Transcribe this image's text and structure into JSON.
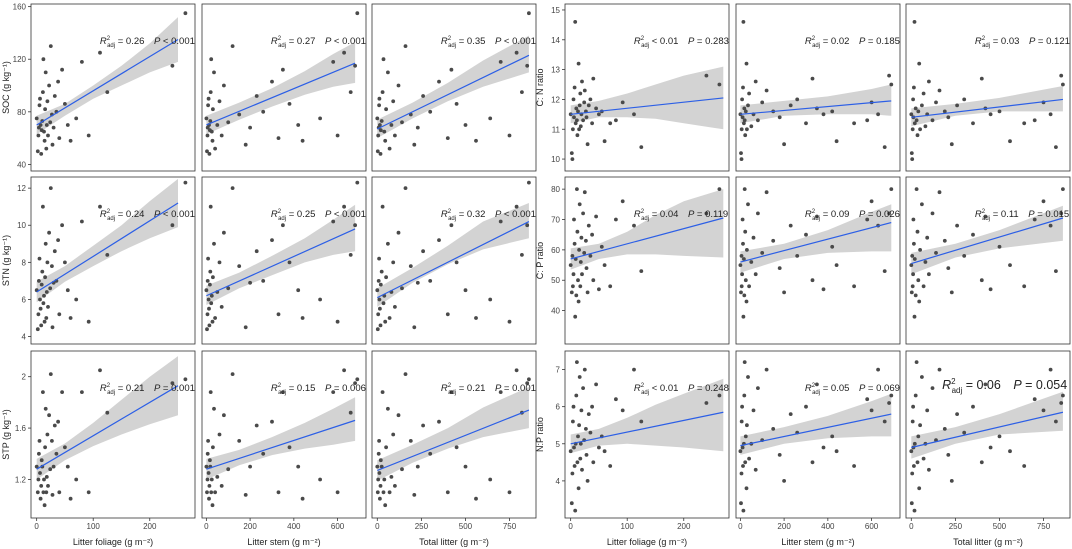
{
  "chart_data": {
    "type": "scatter",
    "description_panels": "6 columns x 3 rows of scatter plots with linear fits and grey confidence bands",
    "column_xlabels": [
      "Litter foliage (g m⁻²)",
      "Litter stem (g m⁻²)",
      "Total litter (g m⁻²)",
      "Litter foliage (g m⁻²)",
      "Litter stem (g m⁻²)",
      "Total litter (g m⁻²)"
    ],
    "x_axes": [
      {
        "range": [
          -10,
          280
        ],
        "ticks": [
          0,
          100,
          200
        ]
      },
      {
        "range": [
          -20,
          730
        ],
        "ticks": [
          0,
          200,
          400,
          600
        ]
      },
      {
        "range": [
          -30,
          900
        ],
        "ticks": [
          0,
          250,
          500,
          750
        ]
      },
      {
        "range": [
          -10,
          280
        ],
        "ticks": [
          0,
          100,
          200
        ]
      },
      {
        "range": [
          -20,
          730
        ],
        "ticks": [
          0,
          200,
          400,
          600
        ]
      },
      {
        "range": [
          -30,
          900
        ],
        "ticks": [
          0,
          250,
          500,
          750
        ]
      }
    ],
    "rows": [
      {
        "left": {
          "ylabel": "SOC (g kg⁻¹)",
          "range": [
            35,
            162
          ],
          "ticks": [
            40,
            80,
            120,
            160
          ]
        },
        "right": {
          "ylabel": "C: N ratio",
          "range": [
            9.6,
            15.2
          ],
          "ticks": [
            10,
            11,
            12,
            13,
            14,
            15
          ]
        }
      },
      {
        "left": {
          "ylabel": "STN (g kg⁻¹)",
          "range": [
            3.6,
            12.6
          ],
          "ticks": [
            4,
            6,
            8,
            10,
            12
          ]
        },
        "right": {
          "ylabel": "C: P ratio",
          "range": [
            29,
            84
          ],
          "ticks": [
            40,
            50,
            60,
            70,
            80
          ]
        }
      },
      {
        "left": {
          "ylabel": "STP (g kg⁻¹)",
          "range": [
            0.9,
            2.2
          ],
          "ticks": [
            1.2,
            1.6,
            2.0
          ]
        },
        "right": {
          "ylabel": "N:P ratio",
          "range": [
            3.0,
            7.5
          ],
          "ticks": [
            4,
            5,
            6,
            7
          ]
        }
      }
    ],
    "panels": [
      {
        "row": 0,
        "col": 0,
        "r2": "0.26",
        "p": "< 0.001",
        "fit": [
          [
            0,
            70
          ],
          [
            250,
            135
          ]
        ],
        "band": [
          [
            0,
            63,
            77
          ],
          [
            50,
            77,
            86
          ],
          [
            100,
            90,
            100
          ],
          [
            150,
            100,
            115
          ],
          [
            200,
            110,
            132
          ],
          [
            250,
            118,
            152
          ]
        ]
      },
      {
        "row": 0,
        "col": 1,
        "r2": "0.27",
        "p": "< 0.001",
        "fit": [
          [
            0,
            70
          ],
          [
            680,
            117
          ]
        ],
        "band": [
          [
            0,
            63,
            77
          ],
          [
            150,
            74,
            87
          ],
          [
            300,
            84,
            98
          ],
          [
            450,
            93,
            111
          ],
          [
            580,
            99,
            124
          ],
          [
            680,
            102,
            133
          ]
        ]
      },
      {
        "row": 0,
        "col": 2,
        "r2": "0.35",
        "p": "< 0.001",
        "fit": [
          [
            0,
            67
          ],
          [
            860,
            123
          ]
        ],
        "band": [
          [
            0,
            60,
            74
          ],
          [
            200,
            75,
            87
          ],
          [
            400,
            88,
            102
          ],
          [
            600,
            99,
            119
          ],
          [
            860,
            110,
            138
          ]
        ]
      },
      {
        "row": 0,
        "col": 3,
        "r2": "< 0.01",
        "p": "0.283",
        "r2_has_eq": false,
        "fit": [
          [
            0,
            11.5
          ],
          [
            270,
            12.05
          ]
        ],
        "band": [
          [
            0,
            11.2,
            11.8
          ],
          [
            50,
            11.4,
            11.95
          ],
          [
            100,
            11.4,
            12.2
          ],
          [
            150,
            11.35,
            12.5
          ],
          [
            200,
            11.2,
            12.8
          ],
          [
            270,
            11.0,
            13.1
          ]
        ]
      },
      {
        "row": 0,
        "col": 4,
        "r2": "0.02",
        "p": "0.185",
        "fit": [
          [
            0,
            11.5
          ],
          [
            690,
            11.95
          ]
        ],
        "band": [
          [
            0,
            11.2,
            11.8
          ],
          [
            200,
            11.45,
            11.95
          ],
          [
            400,
            11.5,
            12.1
          ],
          [
            600,
            11.5,
            12.35
          ],
          [
            690,
            11.45,
            12.5
          ]
        ]
      },
      {
        "row": 0,
        "col": 5,
        "r2": "0.03",
        "p": "0.121",
        "fit": [
          [
            0,
            11.4
          ],
          [
            860,
            12.0
          ]
        ],
        "band": [
          [
            0,
            11.1,
            11.7
          ],
          [
            250,
            11.45,
            11.85
          ],
          [
            500,
            11.6,
            12.05
          ],
          [
            860,
            11.6,
            12.45
          ]
        ]
      },
      {
        "row": 1,
        "col": 0,
        "r2": "0.24",
        "p": "< 0.001",
        "fit": [
          [
            0,
            6.4
          ],
          [
            250,
            11.2
          ]
        ],
        "band": [
          [
            0,
            5.85,
            6.95
          ],
          [
            50,
            6.95,
            7.8
          ],
          [
            100,
            7.8,
            8.9
          ],
          [
            150,
            8.6,
            10.0
          ],
          [
            200,
            9.3,
            11.3
          ],
          [
            250,
            9.9,
            12.5
          ]
        ]
      },
      {
        "row": 1,
        "col": 1,
        "r2": "0.25",
        "p": "< 0.001",
        "fit": [
          [
            0,
            6.2
          ],
          [
            680,
            9.8
          ]
        ],
        "band": [
          [
            0,
            5.7,
            6.75
          ],
          [
            150,
            6.6,
            7.45
          ],
          [
            300,
            7.3,
            8.35
          ],
          [
            450,
            8.0,
            9.3
          ],
          [
            580,
            8.4,
            10.3
          ],
          [
            680,
            8.6,
            11.1
          ]
        ]
      },
      {
        "row": 1,
        "col": 2,
        "r2": "0.32",
        "p": "< 0.001",
        "fit": [
          [
            0,
            6.1
          ],
          [
            860,
            10.2
          ]
        ],
        "band": [
          [
            0,
            5.6,
            6.6
          ],
          [
            200,
            6.9,
            7.7
          ],
          [
            400,
            7.9,
            8.9
          ],
          [
            600,
            8.7,
            10.2
          ],
          [
            860,
            9.3,
            11.2
          ]
        ]
      },
      {
        "row": 1,
        "col": 3,
        "r2": "0.04",
        "p": "0.119",
        "fit": [
          [
            0,
            57
          ],
          [
            270,
            70.5
          ]
        ],
        "band": [
          [
            0,
            53.5,
            60.5
          ],
          [
            50,
            57,
            62
          ],
          [
            100,
            58.5,
            66
          ],
          [
            150,
            58.5,
            71.5
          ],
          [
            200,
            58,
            76
          ],
          [
            270,
            57.5,
            80
          ]
        ]
      },
      {
        "row": 1,
        "col": 4,
        "r2": "0.09",
        "p": "0.026",
        "fit": [
          [
            0,
            56
          ],
          [
            690,
            69
          ]
        ],
        "band": [
          [
            0,
            52.5,
            59.5
          ],
          [
            200,
            57,
            62
          ],
          [
            400,
            59,
            66.5
          ],
          [
            600,
            59.5,
            72.5
          ],
          [
            690,
            59.5,
            75
          ]
        ]
      },
      {
        "row": 1,
        "col": 5,
        "r2": "0.11",
        "p": "0.015",
        "fit": [
          [
            0,
            55.5
          ],
          [
            860,
            70.5
          ]
        ],
        "band": [
          [
            0,
            52,
            59
          ],
          [
            250,
            57.5,
            62
          ],
          [
            500,
            60.5,
            66.5
          ],
          [
            860,
            63,
            74.5
          ]
        ]
      },
      {
        "row": 2,
        "col": 0,
        "r2": "0.21",
        "p": "0.001",
        "fit": [
          [
            0,
            1.28
          ],
          [
            250,
            1.93
          ]
        ],
        "band": [
          [
            0,
            1.2,
            1.36
          ],
          [
            50,
            1.35,
            1.48
          ],
          [
            100,
            1.46,
            1.64
          ],
          [
            150,
            1.55,
            1.82
          ],
          [
            200,
            1.63,
            2.0
          ],
          [
            250,
            1.7,
            2.16
          ]
        ]
      },
      {
        "row": 2,
        "col": 1,
        "r2": "0.15",
        "p": "0.006",
        "fit": [
          [
            0,
            1.28
          ],
          [
            680,
            1.66
          ]
        ],
        "band": [
          [
            0,
            1.2,
            1.36
          ],
          [
            150,
            1.31,
            1.43
          ],
          [
            300,
            1.39,
            1.53
          ],
          [
            450,
            1.44,
            1.64
          ],
          [
            580,
            1.47,
            1.75
          ],
          [
            680,
            1.5,
            1.84
          ]
        ]
      },
      {
        "row": 2,
        "col": 2,
        "r2": "0.21",
        "p": "0.001",
        "fit": [
          [
            0,
            1.27
          ],
          [
            860,
            1.74
          ]
        ],
        "band": [
          [
            0,
            1.19,
            1.35
          ],
          [
            200,
            1.33,
            1.47
          ],
          [
            400,
            1.44,
            1.6
          ],
          [
            600,
            1.53,
            1.76
          ],
          [
            860,
            1.6,
            1.92
          ]
        ]
      },
      {
        "row": 2,
        "col": 3,
        "r2": "< 0.01",
        "p": "0.248",
        "r2_has_eq": false,
        "fit": [
          [
            0,
            5.0
          ],
          [
            270,
            5.85
          ]
        ],
        "band": [
          [
            0,
            4.75,
            5.25
          ],
          [
            50,
            4.95,
            5.4
          ],
          [
            100,
            5.0,
            5.7
          ],
          [
            150,
            4.95,
            6.05
          ],
          [
            200,
            4.9,
            6.35
          ],
          [
            270,
            4.8,
            6.75
          ]
        ]
      },
      {
        "row": 2,
        "col": 4,
        "r2": "0.05",
        "p": "0.069",
        "fit": [
          [
            0,
            4.95
          ],
          [
            690,
            5.8
          ]
        ],
        "band": [
          [
            0,
            4.7,
            5.2
          ],
          [
            200,
            5.0,
            5.45
          ],
          [
            400,
            5.15,
            5.75
          ],
          [
            600,
            5.2,
            6.15
          ],
          [
            690,
            5.2,
            6.35
          ]
        ]
      },
      {
        "row": 2,
        "col": 5,
        "r2": "0.06",
        "p": "0.054",
        "big": true,
        "fit": [
          [
            0,
            4.9
          ],
          [
            860,
            5.85
          ]
        ],
        "band": [
          [
            0,
            4.6,
            5.2
          ],
          [
            250,
            5.0,
            5.45
          ],
          [
            500,
            5.25,
            5.8
          ],
          [
            860,
            5.35,
            6.4
          ]
        ]
      }
    ],
    "points": {
      "foliage": [
        0,
        2,
        3,
        4,
        5,
        6,
        7,
        8,
        9,
        10,
        11,
        12,
        13,
        14,
        15,
        16,
        17,
        18,
        19,
        20,
        22,
        24,
        25,
        27,
        28,
        30,
        32,
        35,
        38,
        40,
        45,
        50,
        55,
        60,
        70,
        80,
        92,
        112,
        125,
        240,
        263
      ],
      "stem": [
        0,
        3,
        5,
        6,
        8,
        10,
        12,
        14,
        16,
        18,
        20,
        22,
        25,
        28,
        30,
        35,
        40,
        50,
        60,
        70,
        80,
        100,
        120,
        150,
        180,
        200,
        230,
        260,
        300,
        330,
        350,
        380,
        420,
        440,
        520,
        580,
        600,
        630,
        660,
        680,
        690
      ],
      "total": [
        0,
        3,
        5,
        8,
        10,
        12,
        15,
        18,
        20,
        25,
        30,
        35,
        40,
        45,
        50,
        60,
        70,
        80,
        90,
        100,
        120,
        140,
        160,
        190,
        210,
        230,
        260,
        300,
        350,
        400,
        420,
        450,
        500,
        560,
        640,
        700,
        750,
        790,
        820,
        850,
        860
      ],
      "SOC": [
        75,
        50,
        62,
        68,
        85,
        90,
        70,
        48,
        66,
        73,
        95,
        120,
        65,
        58,
        82,
        110,
        52,
        70,
        88,
        62,
        100,
        72,
        130,
        78,
        55,
        68,
        92,
        80,
        103,
        60,
        112,
        86,
        70,
        58,
        75,
        118,
        62,
        125,
        95,
        115,
        155
      ],
      "STN": [
        6.5,
        4.4,
        5.2,
        7.0,
        8.2,
        6.0,
        5.5,
        4.6,
        6.8,
        7.5,
        11.0,
        5.8,
        6.2,
        4.8,
        7.2,
        9.0,
        5.0,
        6.4,
        8.0,
        5.6,
        9.6,
        6.6,
        12.0,
        7.8,
        4.5,
        6.9,
        8.6,
        7.0,
        9.2,
        5.2,
        10.0,
        8.0,
        6.5,
        5.0,
        6.0,
        10.2,
        4.8,
        11.0,
        8.4,
        10.0,
        12.3
      ],
      "STP": [
        1.3,
        1.1,
        1.2,
        1.4,
        1.5,
        1.25,
        1.05,
        1.15,
        1.35,
        1.3,
        1.88,
        1.1,
        1.2,
        1.0,
        1.45,
        1.75,
        1.1,
        1.22,
        1.55,
        1.15,
        1.7,
        1.28,
        2.02,
        1.5,
        1.08,
        1.3,
        1.62,
        1.4,
        1.65,
        1.1,
        1.88,
        1.45,
        1.3,
        1.05,
        1.2,
        1.88,
        1.1,
        2.05,
        1.72,
        1.95,
        1.98
      ],
      "CN": [
        11.5,
        10.2,
        10.0,
        11.0,
        12.0,
        11.4,
        12.4,
        14.6,
        11.2,
        11.7,
        11.3,
        10.8,
        11.6,
        13.2,
        11.0,
        11.8,
        12.2,
        11.1,
        11.5,
        12.6,
        11.3,
        11.9,
        12.3,
        11.6,
        11.4,
        10.5,
        11.8,
        12.0,
        11.2,
        12.7,
        11.7,
        11.5,
        11.6,
        10.6,
        11.2,
        11.3,
        11.9,
        11.5,
        10.4,
        12.8,
        12.5
      ],
      "CP": [
        55,
        46,
        58,
        48,
        52,
        70,
        62,
        38,
        57,
        45,
        80,
        66,
        50,
        43,
        60,
        75,
        48,
        56,
        64,
        52,
        72,
        59,
        79,
        63,
        54,
        46,
        68,
        58,
        65,
        50,
        71,
        47,
        61,
        55,
        48,
        70,
        76,
        68,
        53,
        72,
        80
      ],
      "NP": [
        4.8,
        3.4,
        4.2,
        5.6,
        6.0,
        4.9,
        4.4,
        3.2,
        5.0,
        6.3,
        7.2,
        4.5,
        5.2,
        3.8,
        5.5,
        6.8,
        4.6,
        5.0,
        5.9,
        4.3,
        6.5,
        5.1,
        7.0,
        5.4,
        4.7,
        4.0,
        5.8,
        5.3,
        6.0,
        4.5,
        6.6,
        4.9,
        5.2,
        4.8,
        4.4,
        6.2,
        5.9,
        7.0,
        5.6,
        6.1,
        6.3
      ]
    }
  }
}
